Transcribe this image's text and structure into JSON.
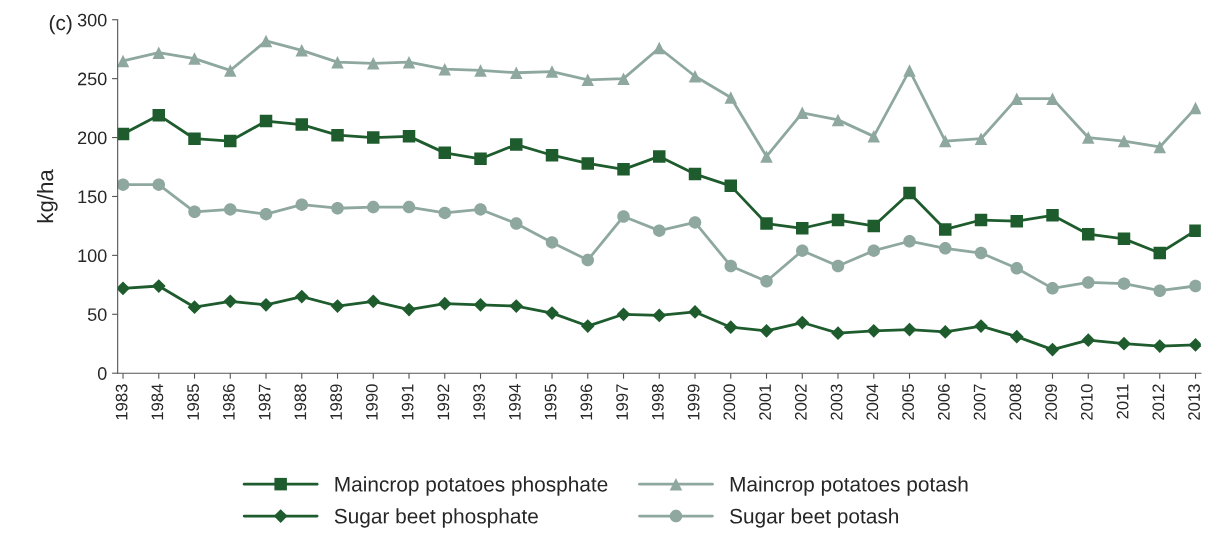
{
  "chart_data": {
    "type": "line",
    "ylabel": "kg/ha",
    "annotations": [
      "(c)"
    ],
    "categories": [
      "1983",
      "1984",
      "1985",
      "1986",
      "1987",
      "1988",
      "1989",
      "1990",
      "1991",
      "1992",
      "1993",
      "1994",
      "1995",
      "1996",
      "1997",
      "1998",
      "1999",
      "2000",
      "2001",
      "2002",
      "2003",
      "2004",
      "2005",
      "2006",
      "2007",
      "2008",
      "2009",
      "2010",
      "2011",
      "2012",
      "2013"
    ],
    "ylim": [
      0,
      300
    ],
    "yticks": [
      0,
      50,
      100,
      150,
      200,
      250,
      300
    ],
    "grid": false,
    "legend": "bottom",
    "series": [
      {
        "name": "Maincrop potatoes phosphate",
        "color": "#1e5c2e",
        "marker": "square",
        "values": [
          203,
          219,
          199,
          197,
          214,
          211,
          202,
          200,
          201,
          187,
          182,
          194,
          185,
          178,
          173,
          184,
          169,
          159,
          127,
          123,
          130,
          125,
          153,
          122,
          130,
          129,
          134,
          118,
          114,
          102,
          121
        ]
      },
      {
        "name": "Maincrop potatoes potash",
        "color": "#8fa89f",
        "marker": "triangle",
        "values": [
          265,
          272,
          267,
          257,
          282,
          274,
          264,
          263,
          264,
          258,
          257,
          255,
          256,
          249,
          250,
          276,
          252,
          234,
          184,
          221,
          215,
          201,
          257,
          197,
          199,
          233,
          233,
          200,
          197,
          192,
          225
        ]
      },
      {
        "name": "Sugar beet phosphate",
        "color": "#1e5c2e",
        "marker": "diamond",
        "values": [
          72,
          74,
          56,
          61,
          58,
          65,
          57,
          61,
          54,
          59,
          58,
          57,
          51,
          40,
          50,
          49,
          52,
          39,
          36,
          43,
          34,
          36,
          37,
          35,
          40,
          31,
          20,
          28,
          25,
          23,
          24
        ]
      },
      {
        "name": "Sugar beet potash",
        "color": "#8fa89f",
        "marker": "circle",
        "values": [
          160,
          160,
          137,
          139,
          135,
          143,
          140,
          141,
          141,
          136,
          139,
          127,
          111,
          96,
          133,
          121,
          128,
          91,
          78,
          104,
          91,
          104,
          112,
          106,
          102,
          89,
          72,
          77,
          76,
          70,
          74
        ]
      }
    ]
  }
}
